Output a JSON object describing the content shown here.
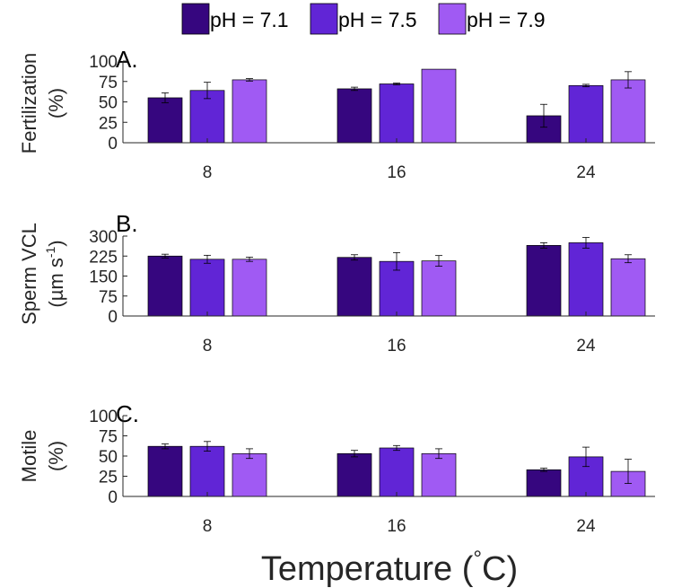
{
  "legend": [
    {
      "label": "pH = 7.1",
      "color": "#36067f"
    },
    {
      "label": "pH = 7.5",
      "color": "#6125d6"
    },
    {
      "label": "pH = 7.9",
      "color": "#a05af3"
    }
  ],
  "x_title": {
    "main": "Temperature (",
    "degree": "°",
    "unit": "C)"
  },
  "chart_data": [
    {
      "type": "bar",
      "panel_label": "A.",
      "ylabel_lines": [
        "Fertilization",
        "(%)"
      ],
      "categories": [
        "8",
        "16",
        "24"
      ],
      "ylim": [
        0,
        100
      ],
      "yticks": [
        "0",
        "25",
        "50",
        "75",
        "100"
      ],
      "series": [
        {
          "name": "pH = 7.1",
          "values": [
            55,
            66,
            33
          ],
          "errors": [
            6,
            2,
            14
          ]
        },
        {
          "name": "pH = 7.5",
          "values": [
            64,
            72,
            70
          ],
          "errors": [
            10,
            1,
            1.5
          ]
        },
        {
          "name": "pH = 7.9",
          "values": [
            77,
            90,
            77
          ],
          "errors": [
            1.5,
            0,
            10
          ]
        }
      ]
    },
    {
      "type": "bar",
      "panel_label": "B.",
      "ylabel_lines": [
        "Sperm VCL",
        "(µm s"
      ],
      "ylabel_sup": "-1",
      "ylabel_close": ")",
      "categories": [
        "8",
        "16",
        "24"
      ],
      "ylim": [
        0,
        300
      ],
      "yticks": [
        "0",
        "75",
        "150",
        "225",
        "300"
      ],
      "series": [
        {
          "name": "pH = 7.1",
          "values": [
            225,
            220,
            265
          ],
          "errors": [
            7,
            10,
            10
          ]
        },
        {
          "name": "pH = 7.5",
          "values": [
            213,
            205,
            275
          ],
          "errors": [
            15,
            33,
            20
          ]
        },
        {
          "name": "pH = 7.9",
          "values": [
            213,
            207,
            215
          ],
          "errors": [
            8,
            20,
            15
          ]
        }
      ]
    },
    {
      "type": "bar",
      "panel_label": "C.",
      "ylabel_lines": [
        "Motile",
        "(%)"
      ],
      "categories": [
        "8",
        "16",
        "24"
      ],
      "ylim": [
        0,
        100
      ],
      "yticks": [
        "0",
        "25",
        "50",
        "75",
        "100"
      ],
      "series": [
        {
          "name": "pH = 7.1",
          "values": [
            62,
            53,
            33
          ],
          "errors": [
            3,
            4,
            2
          ]
        },
        {
          "name": "pH = 7.5",
          "values": [
            62,
            60,
            49
          ],
          "errors": [
            6,
            3,
            12
          ]
        },
        {
          "name": "pH = 7.9",
          "values": [
            53,
            53,
            31
          ],
          "errors": [
            6,
            6,
            15
          ]
        }
      ]
    }
  ]
}
